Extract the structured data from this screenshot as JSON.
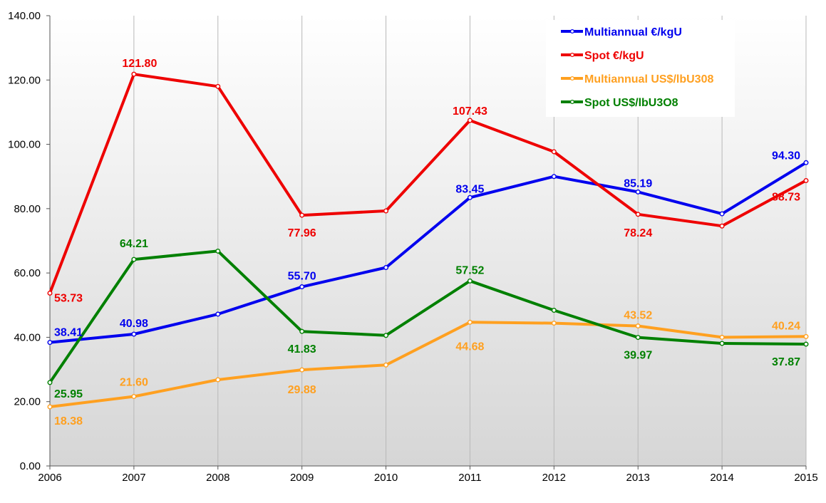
{
  "chart_data": {
    "type": "line",
    "title": "",
    "xlabel": "",
    "ylabel": "",
    "x": [
      "2006",
      "2007",
      "2008",
      "2009",
      "2010",
      "2011",
      "2012",
      "2013",
      "2014",
      "2015"
    ],
    "ylim": [
      0,
      140
    ],
    "yticks": [
      0,
      20,
      40,
      60,
      80,
      100,
      120,
      140
    ],
    "ytick_labels": [
      "0.00",
      "20.00",
      "40.00",
      "60.00",
      "80.00",
      "100.00",
      "120.00",
      "140.00"
    ],
    "grid": "vertical",
    "legend_position": "top-right",
    "series": [
      {
        "key": "multiannual-eur",
        "name": "Multiannual €/kgU",
        "color": "#0000ee",
        "values": [
          38.41,
          40.98,
          47.2,
          55.7,
          61.7,
          83.45,
          90.0,
          85.19,
          78.4,
          94.3
        ],
        "labels": [
          "38.41",
          "40.98",
          "",
          "55.70",
          "",
          "83.45",
          "",
          "85.19",
          "",
          "94.30"
        ]
      },
      {
        "key": "spot-eur",
        "name": "Spot €/kgU",
        "color": "#ee0000",
        "values": [
          53.73,
          121.8,
          118.0,
          77.96,
          79.3,
          107.43,
          97.7,
          78.24,
          74.6,
          88.73
        ],
        "labels": [
          "53.73",
          "121.80",
          "",
          "77.96",
          "",
          "107.43",
          "",
          "78.24",
          "",
          "88.73"
        ]
      },
      {
        "key": "multiannual-usd",
        "name": "Multiannual US$/lbU308",
        "color": "#ffa020",
        "values": [
          18.38,
          21.6,
          26.8,
          29.88,
          31.4,
          44.68,
          44.4,
          43.52,
          40.0,
          40.24
        ],
        "labels": [
          "18.38",
          "21.60",
          "",
          "29.88",
          "",
          "44.68",
          "",
          "43.52",
          "",
          "40.24"
        ]
      },
      {
        "key": "spot-usd",
        "name": "Spot US$/lbU3O8",
        "color": "#008000",
        "values": [
          25.95,
          64.21,
          66.8,
          41.83,
          40.6,
          57.52,
          48.4,
          39.97,
          38.1,
          37.87
        ],
        "labels": [
          "25.95",
          "64.21",
          "",
          "41.83",
          "",
          "57.52",
          "",
          "39.97",
          "",
          "37.87"
        ]
      }
    ]
  }
}
